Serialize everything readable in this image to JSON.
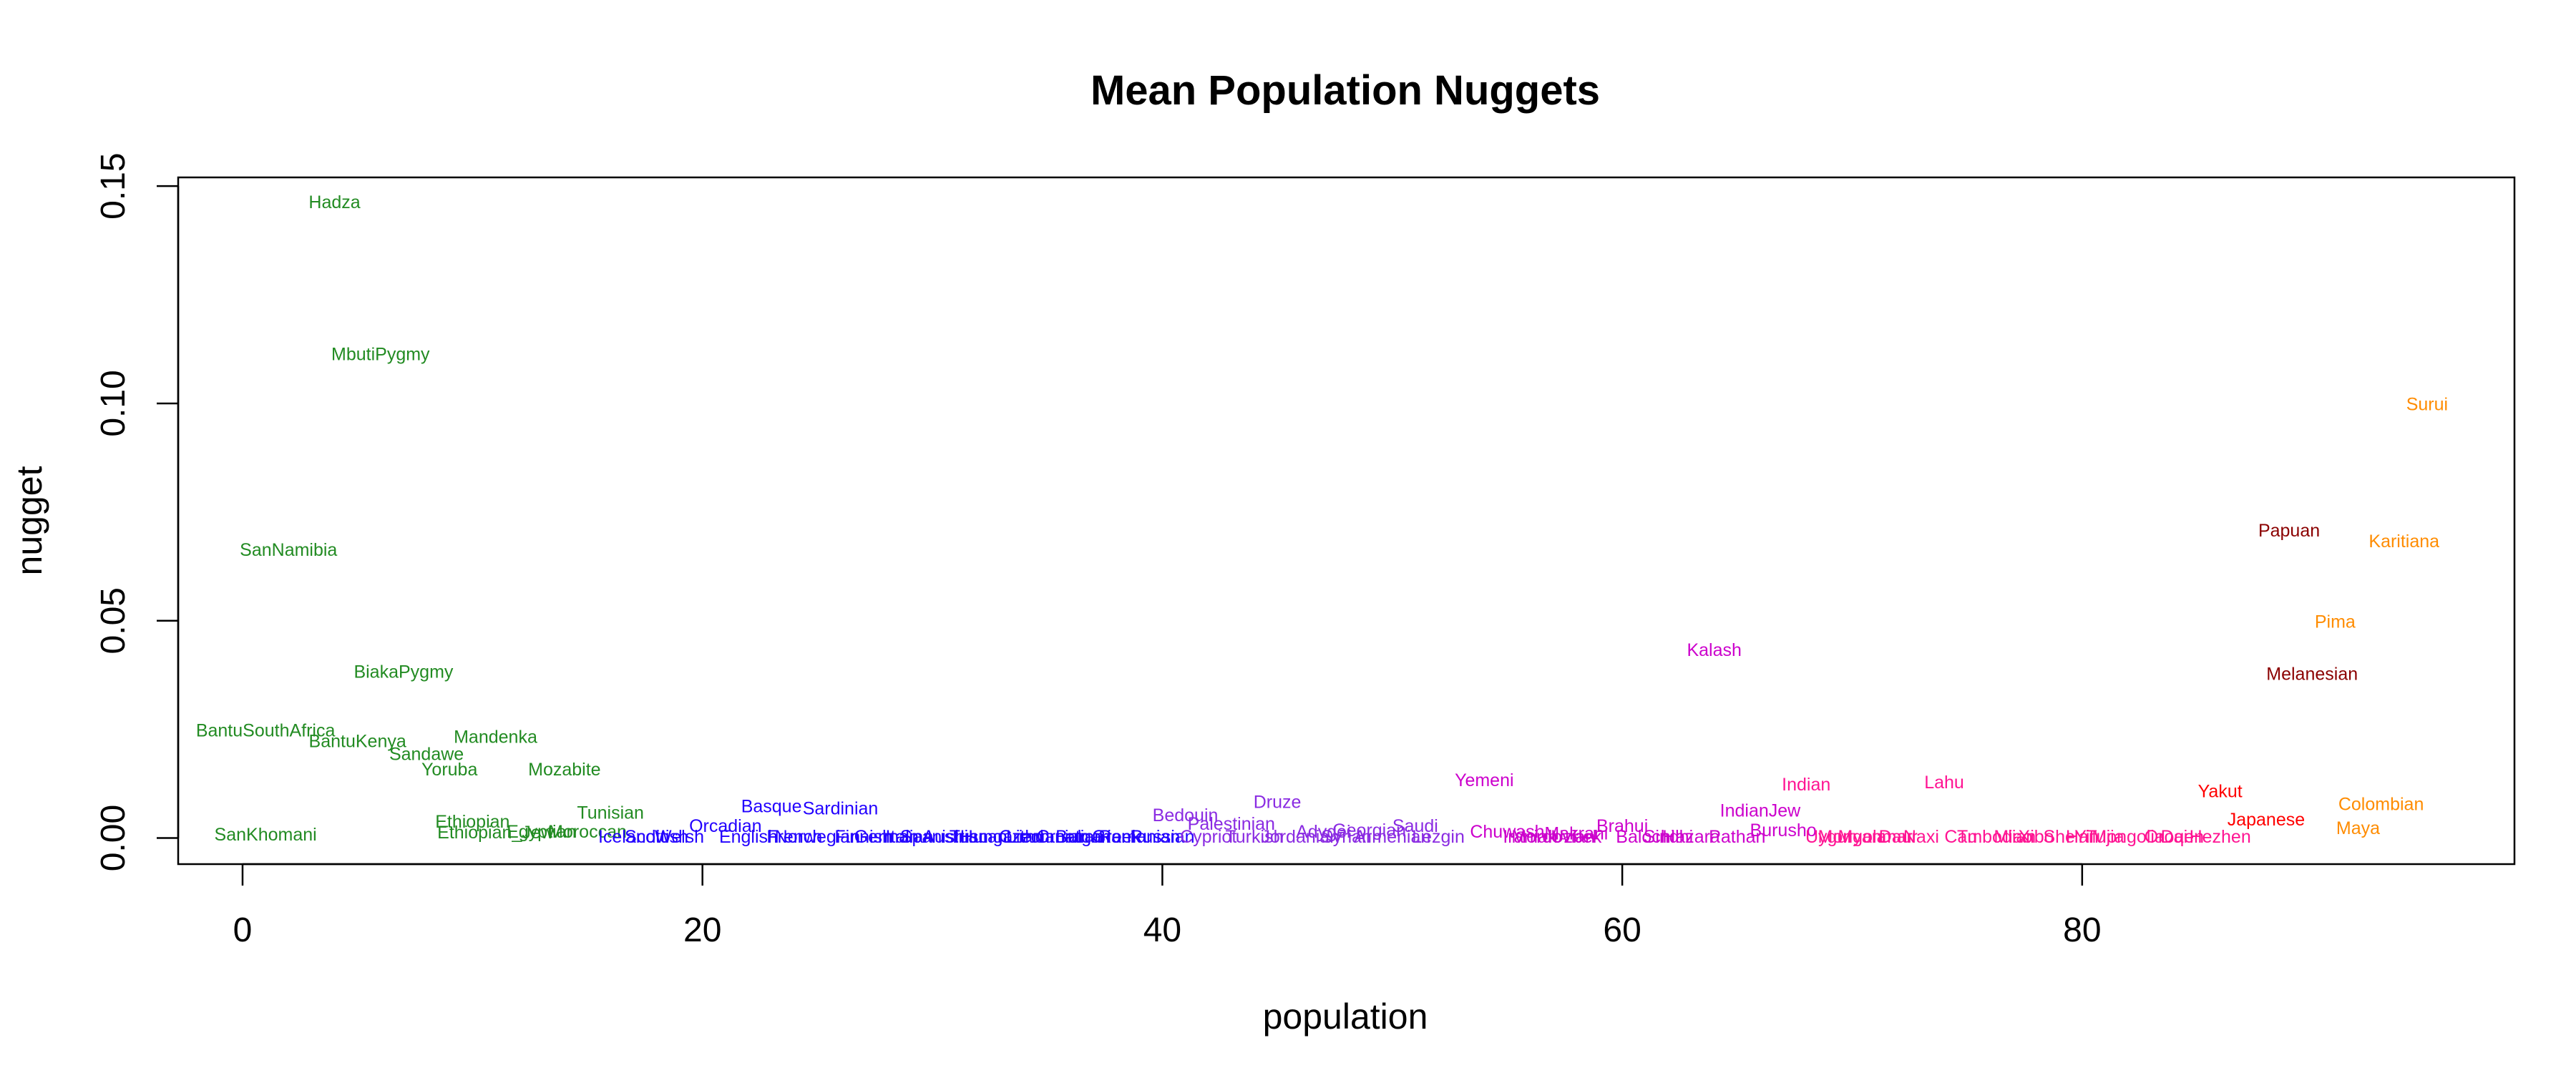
{
  "chart_data": {
    "type": "scatter",
    "title": "Mean Population Nuggets",
    "xlabel": "population",
    "ylabel": "nugget",
    "xlim": [
      -2.8,
      98.8
    ],
    "ylim": [
      -0.006,
      0.152
    ],
    "xticks": [
      0,
      20,
      40,
      60,
      80
    ],
    "yticks": [
      0.0,
      0.05,
      0.1,
      0.15
    ],
    "xtick_labels": [
      "0",
      "20",
      "40",
      "60",
      "80"
    ],
    "ytick_labels": [
      "0.00",
      "0.05",
      "0.10",
      "0.15"
    ],
    "grid": false,
    "legend": "none",
    "points": [
      {
        "label": "SanKhomani",
        "x": 1,
        "y": 0.0005,
        "color": "#228B22"
      },
      {
        "label": "SanNamibia",
        "x": 2,
        "y": 0.066,
        "color": "#228B22"
      },
      {
        "label": "Hadza",
        "x": 4,
        "y": 0.146,
        "color": "#228B22"
      },
      {
        "label": "BantuSouthAfrica",
        "x": 1,
        "y": 0.0245,
        "color": "#228B22"
      },
      {
        "label": "BantuKenya",
        "x": 5,
        "y": 0.022,
        "color": "#228B22"
      },
      {
        "label": "MbutiPygmy",
        "x": 6,
        "y": 0.111,
        "color": "#228B22"
      },
      {
        "label": "BiakaPygmy",
        "x": 7,
        "y": 0.038,
        "color": "#228B22"
      },
      {
        "label": "Sandawe",
        "x": 8,
        "y": 0.019,
        "color": "#228B22"
      },
      {
        "label": "Yoruba",
        "x": 9,
        "y": 0.0155,
        "color": "#228B22"
      },
      {
        "label": "Ethiopian",
        "x": 10,
        "y": 0.0035,
        "color": "#228B22"
      },
      {
        "label": "Mandenka",
        "x": 11,
        "y": 0.023,
        "color": "#228B22"
      },
      {
        "label": "Ethiopian_Jew",
        "x": 11,
        "y": 0.001,
        "color": "#228B22"
      },
      {
        "label": "Egyptian",
        "x": 13,
        "y": 0.0012,
        "color": "#228B22"
      },
      {
        "label": "Mozabite",
        "x": 14,
        "y": 0.0155,
        "color": "#228B22"
      },
      {
        "label": "Moroccan",
        "x": 15,
        "y": 0.0012,
        "color": "#228B22"
      },
      {
        "label": "Tunisian",
        "x": 16,
        "y": 0.0055,
        "color": "#228B22"
      },
      {
        "label": "Icelandic",
        "x": 17,
        "y": 0.0,
        "color": "#2200FF"
      },
      {
        "label": "Scottish",
        "x": 18,
        "y": 0.0,
        "color": "#2200FF"
      },
      {
        "label": "Welsh",
        "x": 19,
        "y": 0.0,
        "color": "#2200FF"
      },
      {
        "label": "Orcadian",
        "x": 21,
        "y": 0.0025,
        "color": "#2200FF"
      },
      {
        "label": "English",
        "x": 22,
        "y": 0.0,
        "color": "#2200FF"
      },
      {
        "label": "Basque",
        "x": 23,
        "y": 0.007,
        "color": "#2200FF"
      },
      {
        "label": "French",
        "x": 24,
        "y": 0.0,
        "color": "#2200FF"
      },
      {
        "label": "Norwegian",
        "x": 25,
        "y": 0.0,
        "color": "#2200FF"
      },
      {
        "label": "Sardinian",
        "x": 26,
        "y": 0.0065,
        "color": "#2200FF"
      },
      {
        "label": "Finnish",
        "x": 27,
        "y": 0.0,
        "color": "#2200FF"
      },
      {
        "label": "German",
        "x": 28,
        "y": 0.0,
        "color": "#2200FF"
      },
      {
        "label": "Italian",
        "x": 29,
        "y": 0.0,
        "color": "#2200FF"
      },
      {
        "label": "Spanish",
        "x": 30,
        "y": 0.0,
        "color": "#2200FF"
      },
      {
        "label": "Austrian",
        "x": 31,
        "y": 0.0,
        "color": "#2200FF"
      },
      {
        "label": "Tuscan",
        "x": 32,
        "y": 0.0,
        "color": "#2200FF"
      },
      {
        "label": "Hungarian",
        "x": 33,
        "y": 0.0,
        "color": "#2200FF"
      },
      {
        "label": "Czech",
        "x": 34,
        "y": 0.0,
        "color": "#2200FF"
      },
      {
        "label": "Lithuanian",
        "x": 35,
        "y": 0.0,
        "color": "#2200FF"
      },
      {
        "label": "Croatian",
        "x": 36,
        "y": 0.0,
        "color": "#2200FF"
      },
      {
        "label": "Bulgarian",
        "x": 37,
        "y": 0.0,
        "color": "#2200FF"
      },
      {
        "label": "Greek",
        "x": 38,
        "y": 0.0,
        "color": "#2200FF"
      },
      {
        "label": "Romanian",
        "x": 39,
        "y": 0.0,
        "color": "#2200FF"
      },
      {
        "label": "Russian",
        "x": 40,
        "y": 0.0,
        "color": "#2200FF"
      },
      {
        "label": "Bedouin",
        "x": 41,
        "y": 0.005,
        "color": "#8A2BE2"
      },
      {
        "label": "Cypriot",
        "x": 42,
        "y": 0.0,
        "color": "#8A2BE2"
      },
      {
        "label": "Palestinian",
        "x": 43,
        "y": 0.003,
        "color": "#8A2BE2"
      },
      {
        "label": "Turkish",
        "x": 44,
        "y": 0.0,
        "color": "#8A2BE2"
      },
      {
        "label": "Druze",
        "x": 45,
        "y": 0.008,
        "color": "#8A2BE2"
      },
      {
        "label": "Jordanian",
        "x": 46,
        "y": 0.0,
        "color": "#8A2BE2"
      },
      {
        "label": "Adygei",
        "x": 47,
        "y": 0.0012,
        "color": "#8A2BE2"
      },
      {
        "label": "Syrian",
        "x": 48,
        "y": 0.0,
        "color": "#8A2BE2"
      },
      {
        "label": "Georgian",
        "x": 49,
        "y": 0.0015,
        "color": "#8A2BE2"
      },
      {
        "label": "Armenian",
        "x": 50,
        "y": 0.0,
        "color": "#8A2BE2"
      },
      {
        "label": "Saudi",
        "x": 51,
        "y": 0.0025,
        "color": "#8A2BE2"
      },
      {
        "label": "Lezgin",
        "x": 52,
        "y": 0.0,
        "color": "#8A2BE2"
      },
      {
        "label": "Yemeni",
        "x": 54,
        "y": 0.013,
        "color": "#CC00CC"
      },
      {
        "label": "Chuwash",
        "x": 55,
        "y": 0.0012,
        "color": "#CC00CC"
      },
      {
        "label": "Iranian",
        "x": 56,
        "y": 0.0,
        "color": "#CC00CC"
      },
      {
        "label": "Mordovian",
        "x": 57,
        "y": 0.0,
        "color": "#CC00CC"
      },
      {
        "label": "Makrani",
        "x": 58,
        "y": 0.0008,
        "color": "#CC00CC"
      },
      {
        "label": "Uzbek",
        "x": 58,
        "y": 0.0,
        "color": "#CC00CC"
      },
      {
        "label": "Brahui",
        "x": 60,
        "y": 0.0025,
        "color": "#CC00CC"
      },
      {
        "label": "Balochi",
        "x": 61,
        "y": 0.0,
        "color": "#CC00CC"
      },
      {
        "label": "Sindhi",
        "x": 62,
        "y": 0.0,
        "color": "#CC00CC"
      },
      {
        "label": "Hazara",
        "x": 63,
        "y": 0.0,
        "color": "#CC00CC"
      },
      {
        "label": "Kalash",
        "x": 64,
        "y": 0.043,
        "color": "#CC00CC"
      },
      {
        "label": "IndianJew",
        "x": 66,
        "y": 0.006,
        "color": "#CC00CC"
      },
      {
        "label": "Pathan",
        "x": 65,
        "y": 0.0,
        "color": "#CC00CC"
      },
      {
        "label": "Burusho",
        "x": 67,
        "y": 0.0015,
        "color": "#CC00CC"
      },
      {
        "label": "Indian",
        "x": 68,
        "y": 0.012,
        "color": "#FF1493"
      },
      {
        "label": "Uygur",
        "x": 69,
        "y": 0.0,
        "color": "#FF1493"
      },
      {
        "label": "Myanmar",
        "x": 71,
        "y": 0.0,
        "color": "#FF1493"
      },
      {
        "label": "Mongola",
        "x": 70,
        "y": 0.0,
        "color": "#FF1493"
      },
      {
        "label": "Daur",
        "x": 72,
        "y": 0.0,
        "color": "#FF1493"
      },
      {
        "label": "Naxi",
        "x": 73,
        "y": 0.0,
        "color": "#FF1493"
      },
      {
        "label": "Lahu",
        "x": 74,
        "y": 0.0125,
        "color": "#FF1493"
      },
      {
        "label": "Tu",
        "x": 75,
        "y": 0.0,
        "color": "#FF1493"
      },
      {
        "label": "Cambodian",
        "x": 76,
        "y": 0.0,
        "color": "#FF1493"
      },
      {
        "label": "Miao",
        "x": 77,
        "y": 0.0,
        "color": "#FF1493"
      },
      {
        "label": "Xibo",
        "x": 78,
        "y": 0.0,
        "color": "#FF1493"
      },
      {
        "label": "She",
        "x": 79,
        "y": 0.0,
        "color": "#FF1493"
      },
      {
        "label": "Han",
        "x": 80,
        "y": 0.0,
        "color": "#FF1493"
      },
      {
        "label": "Tujia",
        "x": 81,
        "y": 0.0,
        "color": "#FF1493"
      },
      {
        "label": "Yi",
        "x": 80,
        "y": 0.0,
        "color": "#FF1493"
      },
      {
        "label": "Mongolia",
        "x": 82,
        "y": 0.0,
        "color": "#FF1493"
      },
      {
        "label": "Dai",
        "x": 84,
        "y": 0.0,
        "color": "#FF1493"
      },
      {
        "label": "Oroqen",
        "x": 84,
        "y": 0.0,
        "color": "#FF1493"
      },
      {
        "label": "Hezhen",
        "x": 86,
        "y": 0.0,
        "color": "#FF1493"
      },
      {
        "label": "Yakut",
        "x": 86,
        "y": 0.0105,
        "color": "#FF0000"
      },
      {
        "label": "Japanese",
        "x": 88,
        "y": 0.004,
        "color": "#FF0000"
      },
      {
        "label": "Papuan",
        "x": 89,
        "y": 0.0705,
        "color": "#8B0000"
      },
      {
        "label": "Melanesian",
        "x": 90,
        "y": 0.0375,
        "color": "#8B0000"
      },
      {
        "label": "Pima",
        "x": 91,
        "y": 0.0495,
        "color": "#FF8C00"
      },
      {
        "label": "Maya",
        "x": 92,
        "y": 0.002,
        "color": "#FF8C00"
      },
      {
        "label": "Colombian",
        "x": 93,
        "y": 0.0075,
        "color": "#FF8C00"
      },
      {
        "label": "Karitiana",
        "x": 94,
        "y": 0.068,
        "color": "#FF8C00"
      },
      {
        "label": "Surui",
        "x": 95,
        "y": 0.0995,
        "color": "#FF8C00"
      }
    ]
  }
}
